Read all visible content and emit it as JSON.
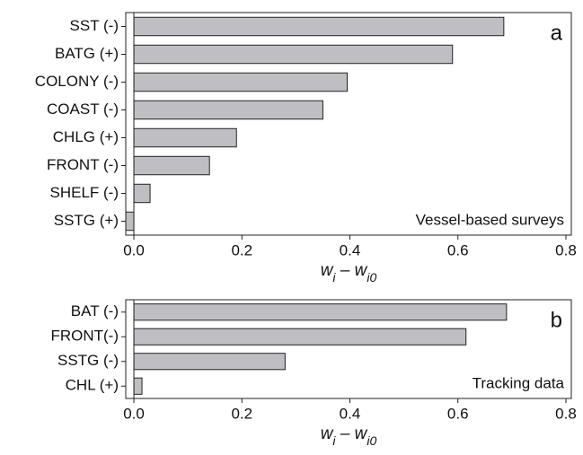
{
  "chart_data": [
    {
      "type": "bar",
      "orientation": "horizontal",
      "panel_label": "a",
      "annotation": "Vessel-based surveys",
      "categories": [
        "SST (-)",
        "BATG (+)",
        "COLONY (-)",
        "COAST (-)",
        "CHLG (+)",
        "FRONT (-)",
        "SHELF (-)",
        "SSTG (+)"
      ],
      "values": [
        0.685,
        0.59,
        0.395,
        0.35,
        0.19,
        0.14,
        0.03,
        -0.015
      ],
      "color": "#bfbfc3",
      "xlim": [
        -0.015,
        0.81
      ],
      "xticks": [
        {
          "value": 0,
          "label": "0.0"
        },
        0.2,
        0.4,
        0.6,
        {
          "value": 0.8,
          "label": "0.8"
        }
      ],
      "xlabel": {
        "base": "w",
        "sub": "i",
        "mid": " – w",
        "sub2": "i0"
      }
    },
    {
      "type": "bar",
      "orientation": "horizontal",
      "panel_label": "b",
      "annotation": "Tracking data",
      "categories": [
        "BAT (-)",
        "FRONT(-)",
        "SSTG (-)",
        "CHL (+)"
      ],
      "values": [
        0.69,
        0.615,
        0.28,
        0.015
      ],
      "color": "#bfbfc3",
      "xlim": [
        -0.015,
        0.81
      ],
      "xticks": [
        {
          "value": 0,
          "label": "0.0"
        },
        0.2,
        0.4,
        0.6,
        {
          "value": 0.8,
          "label": "0.8"
        }
      ],
      "xlabel": {
        "base": "w",
        "sub": "i",
        "mid": " – w",
        "sub2": "i0"
      }
    }
  ]
}
